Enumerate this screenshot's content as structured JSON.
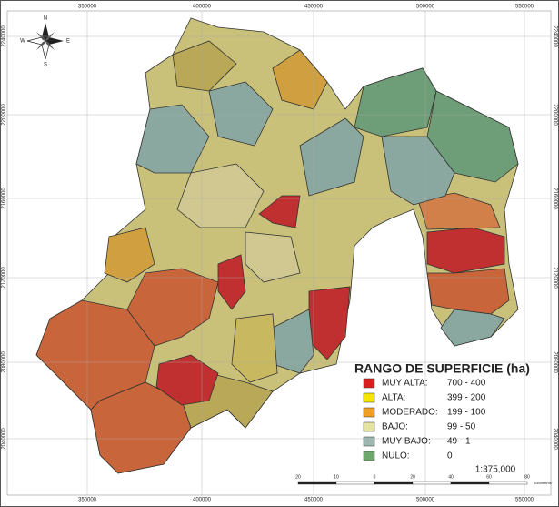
{
  "top_coords": [
    "350000",
    "400000",
    "450000",
    "500000",
    "550000"
  ],
  "side_coords": [
    "2240000",
    "2200000",
    "2160000",
    "2120000",
    "2080000",
    "2040000"
  ],
  "compass": {
    "n": "N",
    "s": "S",
    "e": "E",
    "w": "W"
  },
  "legend": {
    "title": "RANGO DE SUPERFICIE (ha)",
    "items": [
      {
        "label": "MUY ALTA:",
        "range": "700 - 400",
        "color": "#d81e1e"
      },
      {
        "label": "ALTA:",
        "range": "399 - 200",
        "color": "#f5e600"
      },
      {
        "label": "MODERADO:",
        "range": "199 - 100",
        "color": "#f0a020"
      },
      {
        "label": "BAJO:",
        "range": "99 - 50",
        "color": "#e4e4a0"
      },
      {
        "label": "MUY BAJO:",
        "range": "49 - 1",
        "color": "#9cb8b0"
      },
      {
        "label": "NULO:",
        "range": "0",
        "color": "#6ea86e"
      }
    ]
  },
  "scale": "1:375,000",
  "scale_bar": {
    "labels": [
      "20",
      "10",
      "0",
      "20",
      "40",
      "60",
      "80"
    ],
    "unit": "Kilometros"
  }
}
